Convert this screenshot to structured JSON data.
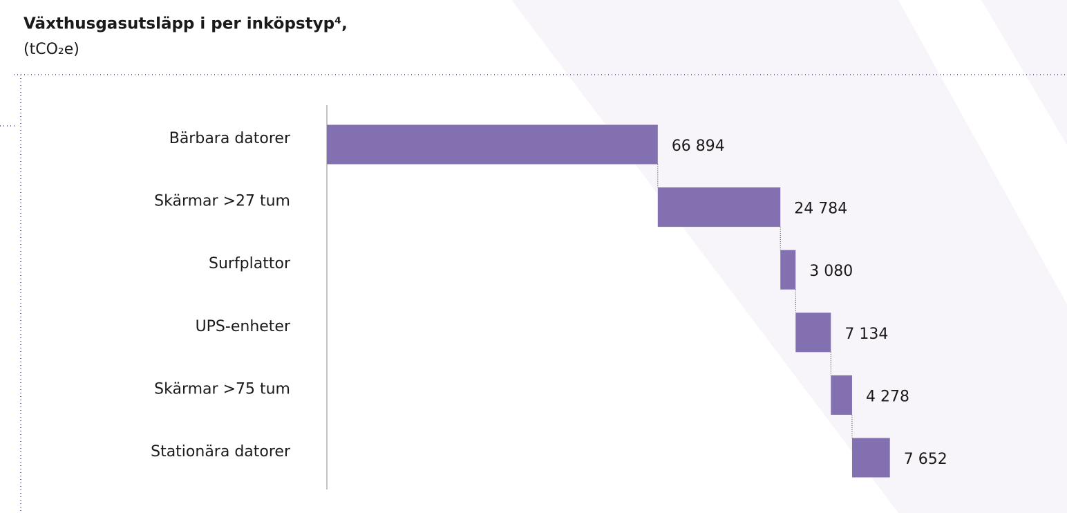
{
  "chart_data": {
    "type": "waterfall",
    "orientation": "horizontal",
    "title": "Växthusgasutsläpp i per inköpstyp⁴,",
    "subtitle": "(tCO₂e)",
    "categories": [
      "Bärbara datorer",
      "Skärmar >27 tum",
      "Surfplattor",
      "UPS-enheter",
      "Skärmar >75 tum",
      "Stationära datorer"
    ],
    "values": [
      66894,
      24784,
      3080,
      7134,
      4278,
      7652
    ],
    "value_labels": [
      "66 894",
      "24 784",
      "3 080",
      "7 134",
      "4 278",
      "7 652"
    ],
    "color": "#8370b0",
    "xlim": [
      0,
      114000
    ]
  }
}
